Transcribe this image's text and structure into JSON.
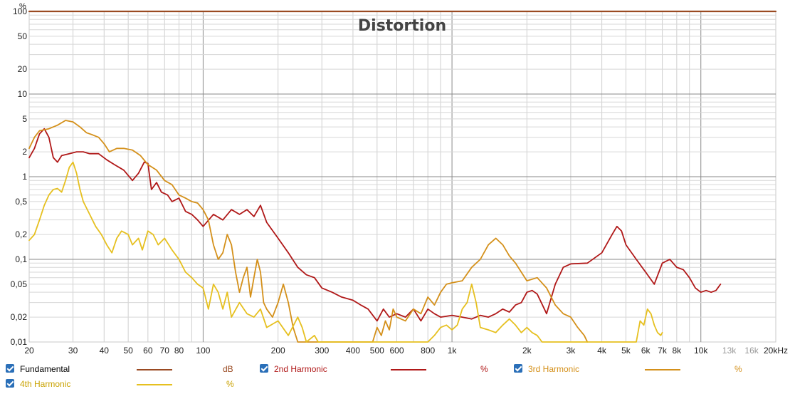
{
  "chart_data": {
    "type": "line",
    "title": "Distortion",
    "y_unit_label": "%",
    "x_scale": "log",
    "y_scale": "log",
    "xlim": [
      20,
      20000
    ],
    "ylim": [
      0.01,
      100
    ],
    "grid": true,
    "x_tick_labels": [
      {
        "v": 20,
        "t": "20"
      },
      {
        "v": 30,
        "t": "30"
      },
      {
        "v": 40,
        "t": "40"
      },
      {
        "v": 50,
        "t": "50"
      },
      {
        "v": 60,
        "t": "60"
      },
      {
        "v": 70,
        "t": "70"
      },
      {
        "v": 80,
        "t": "80"
      },
      {
        "v": 100,
        "t": "100"
      },
      {
        "v": 200,
        "t": "200"
      },
      {
        "v": 300,
        "t": "300"
      },
      {
        "v": 400,
        "t": "400"
      },
      {
        "v": 500,
        "t": "500"
      },
      {
        "v": 600,
        "t": "600"
      },
      {
        "v": 800,
        "t": "800"
      },
      {
        "v": 1000,
        "t": "1k"
      },
      {
        "v": 2000,
        "t": "2k"
      },
      {
        "v": 3000,
        "t": "3k"
      },
      {
        "v": 4000,
        "t": "4k"
      },
      {
        "v": 5000,
        "t": "5k"
      },
      {
        "v": 6000,
        "t": "6k"
      },
      {
        "v": 7000,
        "t": "7k"
      },
      {
        "v": 8000,
        "t": "8k"
      },
      {
        "v": 10000,
        "t": "10k"
      },
      {
        "v": 13000,
        "t": "13k",
        "faint": true
      },
      {
        "v": 16000,
        "t": "16k",
        "faint": true
      },
      {
        "v": 20000,
        "t": "20kHz"
      }
    ],
    "y_tick_labels": [
      {
        "v": 100,
        "t": "100"
      },
      {
        "v": 50,
        "t": "50"
      },
      {
        "v": 20,
        "t": "20"
      },
      {
        "v": 10,
        "t": "10"
      },
      {
        "v": 5,
        "t": "5"
      },
      {
        "v": 2,
        "t": "2"
      },
      {
        "v": 1,
        "t": "1"
      },
      {
        "v": 0.5,
        "t": "0,5"
      },
      {
        "v": 0.2,
        "t": "0,2"
      },
      {
        "v": 0.1,
        "t": "0,1"
      },
      {
        "v": 0.05,
        "t": "0,05"
      },
      {
        "v": 0.02,
        "t": "0,02"
      },
      {
        "v": 0.01,
        "t": "0,01"
      }
    ],
    "series": [
      {
        "name": "Fundamental",
        "unit": "dB",
        "color": "#9a4a22",
        "points": [
          [
            20,
            100
          ],
          [
            20000,
            100
          ]
        ]
      },
      {
        "name": "2nd Harmonic",
        "unit": "%",
        "color": "#b01818",
        "points": [
          [
            20,
            1.7
          ],
          [
            21,
            2.2
          ],
          [
            22,
            3.3
          ],
          [
            23,
            3.8
          ],
          [
            24,
            3.0
          ],
          [
            25,
            1.7
          ],
          [
            26,
            1.5
          ],
          [
            27,
            1.8
          ],
          [
            29,
            1.9
          ],
          [
            31,
            2.0
          ],
          [
            33,
            2.0
          ],
          [
            35,
            1.9
          ],
          [
            38,
            1.9
          ],
          [
            41,
            1.6
          ],
          [
            44,
            1.4
          ],
          [
            48,
            1.2
          ],
          [
            52,
            0.9
          ],
          [
            55,
            1.1
          ],
          [
            58,
            1.5
          ],
          [
            60,
            1.45
          ],
          [
            62,
            0.7
          ],
          [
            65,
            0.85
          ],
          [
            68,
            0.65
          ],
          [
            72,
            0.6
          ],
          [
            75,
            0.5
          ],
          [
            80,
            0.55
          ],
          [
            85,
            0.38
          ],
          [
            90,
            0.35
          ],
          [
            95,
            0.3
          ],
          [
            100,
            0.25
          ],
          [
            110,
            0.35
          ],
          [
            120,
            0.3
          ],
          [
            130,
            0.4
          ],
          [
            140,
            0.35
          ],
          [
            150,
            0.4
          ],
          [
            160,
            0.33
          ],
          [
            170,
            0.45
          ],
          [
            180,
            0.28
          ],
          [
            200,
            0.18
          ],
          [
            220,
            0.12
          ],
          [
            240,
            0.08
          ],
          [
            260,
            0.065
          ],
          [
            280,
            0.06
          ],
          [
            300,
            0.045
          ],
          [
            330,
            0.04
          ],
          [
            360,
            0.035
          ],
          [
            400,
            0.032
          ],
          [
            430,
            0.028
          ],
          [
            460,
            0.025
          ],
          [
            500,
            0.018
          ],
          [
            530,
            0.025
          ],
          [
            560,
            0.02
          ],
          [
            600,
            0.022
          ],
          [
            650,
            0.02
          ],
          [
            700,
            0.025
          ],
          [
            750,
            0.018
          ],
          [
            800,
            0.025
          ],
          [
            850,
            0.022
          ],
          [
            900,
            0.02
          ],
          [
            1000,
            0.021
          ],
          [
            1100,
            0.02
          ],
          [
            1200,
            0.019
          ],
          [
            1300,
            0.021
          ],
          [
            1400,
            0.02
          ],
          [
            1500,
            0.022
          ],
          [
            1600,
            0.025
          ],
          [
            1700,
            0.023
          ],
          [
            1800,
            0.028
          ],
          [
            1900,
            0.03
          ],
          [
            2000,
            0.04
          ],
          [
            2100,
            0.042
          ],
          [
            2200,
            0.038
          ],
          [
            2400,
            0.022
          ],
          [
            2600,
            0.05
          ],
          [
            2800,
            0.08
          ],
          [
            3000,
            0.088
          ],
          [
            3500,
            0.09
          ],
          [
            4000,
            0.12
          ],
          [
            4400,
            0.2
          ],
          [
            4600,
            0.25
          ],
          [
            4800,
            0.22
          ],
          [
            5000,
            0.15
          ],
          [
            5500,
            0.1
          ],
          [
            6000,
            0.07
          ],
          [
            6500,
            0.05
          ],
          [
            7000,
            0.09
          ],
          [
            7500,
            0.1
          ],
          [
            8000,
            0.08
          ],
          [
            8500,
            0.075
          ],
          [
            9000,
            0.06
          ],
          [
            9500,
            0.045
          ],
          [
            10000,
            0.04
          ],
          [
            10500,
            0.042
          ],
          [
            11000,
            0.04
          ],
          [
            11500,
            0.042
          ],
          [
            12000,
            0.05
          ]
        ]
      },
      {
        "name": "3rd Harmonic",
        "unit": "%",
        "color": "#d4901a",
        "points": [
          [
            20,
            2.2
          ],
          [
            21,
            3.0
          ],
          [
            22,
            3.6
          ],
          [
            24,
            3.8
          ],
          [
            26,
            4.2
          ],
          [
            28,
            4.8
          ],
          [
            30,
            4.6
          ],
          [
            32,
            4.0
          ],
          [
            34,
            3.4
          ],
          [
            36,
            3.2
          ],
          [
            38,
            3.0
          ],
          [
            40,
            2.5
          ],
          [
            42,
            2.0
          ],
          [
            45,
            2.2
          ],
          [
            48,
            2.2
          ],
          [
            52,
            2.1
          ],
          [
            56,
            1.8
          ],
          [
            60,
            1.4
          ],
          [
            65,
            1.2
          ],
          [
            70,
            0.9
          ],
          [
            75,
            0.8
          ],
          [
            80,
            0.6
          ],
          [
            85,
            0.55
          ],
          [
            90,
            0.5
          ],
          [
            95,
            0.48
          ],
          [
            100,
            0.4
          ],
          [
            105,
            0.3
          ],
          [
            110,
            0.15
          ],
          [
            115,
            0.1
          ],
          [
            120,
            0.12
          ],
          [
            125,
            0.2
          ],
          [
            130,
            0.15
          ],
          [
            135,
            0.07
          ],
          [
            140,
            0.04
          ],
          [
            145,
            0.06
          ],
          [
            150,
            0.08
          ],
          [
            155,
            0.035
          ],
          [
            160,
            0.06
          ],
          [
            165,
            0.1
          ],
          [
            170,
            0.07
          ],
          [
            175,
            0.03
          ],
          [
            180,
            0.025
          ],
          [
            190,
            0.02
          ],
          [
            200,
            0.03
          ],
          [
            210,
            0.05
          ],
          [
            220,
            0.03
          ],
          [
            230,
            0.015
          ],
          [
            240,
            0.01
          ],
          [
            480,
            0.01
          ],
          [
            500,
            0.015
          ],
          [
            520,
            0.012
          ],
          [
            540,
            0.018
          ],
          [
            560,
            0.014
          ],
          [
            580,
            0.025
          ],
          [
            600,
            0.02
          ],
          [
            650,
            0.018
          ],
          [
            700,
            0.025
          ],
          [
            750,
            0.022
          ],
          [
            800,
            0.035
          ],
          [
            850,
            0.028
          ],
          [
            900,
            0.04
          ],
          [
            950,
            0.05
          ],
          [
            1000,
            0.052
          ],
          [
            1100,
            0.055
          ],
          [
            1200,
            0.08
          ],
          [
            1300,
            0.1
          ],
          [
            1400,
            0.15
          ],
          [
            1500,
            0.18
          ],
          [
            1600,
            0.15
          ],
          [
            1700,
            0.11
          ],
          [
            1800,
            0.09
          ],
          [
            1900,
            0.07
          ],
          [
            2000,
            0.055
          ],
          [
            2200,
            0.06
          ],
          [
            2400,
            0.045
          ],
          [
            2600,
            0.028
          ],
          [
            2800,
            0.022
          ],
          [
            3000,
            0.02
          ],
          [
            3200,
            0.015
          ],
          [
            3400,
            0.012
          ],
          [
            3500,
            0.01
          ]
        ]
      },
      {
        "name": "4th Harmonic",
        "unit": "%",
        "color": "#e6c020",
        "points": [
          [
            20,
            0.17
          ],
          [
            21,
            0.2
          ],
          [
            22,
            0.3
          ],
          [
            23,
            0.45
          ],
          [
            24,
            0.6
          ],
          [
            25,
            0.7
          ],
          [
            26,
            0.72
          ],
          [
            27,
            0.65
          ],
          [
            28,
            0.9
          ],
          [
            29,
            1.3
          ],
          [
            30,
            1.5
          ],
          [
            31,
            1.1
          ],
          [
            32,
            0.7
          ],
          [
            33,
            0.5
          ],
          [
            35,
            0.35
          ],
          [
            37,
            0.25
          ],
          [
            39,
            0.2
          ],
          [
            41,
            0.15
          ],
          [
            43,
            0.12
          ],
          [
            45,
            0.18
          ],
          [
            47,
            0.22
          ],
          [
            50,
            0.2
          ],
          [
            52,
            0.15
          ],
          [
            55,
            0.18
          ],
          [
            57,
            0.13
          ],
          [
            60,
            0.22
          ],
          [
            63,
            0.2
          ],
          [
            66,
            0.15
          ],
          [
            70,
            0.18
          ],
          [
            75,
            0.13
          ],
          [
            80,
            0.1
          ],
          [
            85,
            0.07
          ],
          [
            90,
            0.06
          ],
          [
            95,
            0.05
          ],
          [
            100,
            0.045
          ],
          [
            105,
            0.025
          ],
          [
            110,
            0.05
          ],
          [
            115,
            0.04
          ],
          [
            120,
            0.025
          ],
          [
            125,
            0.04
          ],
          [
            130,
            0.02
          ],
          [
            140,
            0.03
          ],
          [
            150,
            0.022
          ],
          [
            160,
            0.02
          ],
          [
            170,
            0.025
          ],
          [
            180,
            0.015
          ],
          [
            200,
            0.018
          ],
          [
            220,
            0.012
          ],
          [
            240,
            0.02
          ],
          [
            250,
            0.015
          ],
          [
            260,
            0.01
          ],
          [
            280,
            0.012
          ],
          [
            290,
            0.01
          ],
          [
            800,
            0.01
          ],
          [
            850,
            0.012
          ],
          [
            900,
            0.015
          ],
          [
            950,
            0.016
          ],
          [
            1000,
            0.014
          ],
          [
            1050,
            0.016
          ],
          [
            1100,
            0.025
          ],
          [
            1150,
            0.03
          ],
          [
            1200,
            0.05
          ],
          [
            1250,
            0.03
          ],
          [
            1300,
            0.015
          ],
          [
            1400,
            0.014
          ],
          [
            1500,
            0.013
          ],
          [
            1600,
            0.016
          ],
          [
            1700,
            0.019
          ],
          [
            1800,
            0.016
          ],
          [
            1900,
            0.013
          ],
          [
            2000,
            0.015
          ],
          [
            2100,
            0.013
          ],
          [
            2200,
            0.012
          ],
          [
            2300,
            0.01
          ],
          [
            5500,
            0.01
          ],
          [
            5700,
            0.018
          ],
          [
            5900,
            0.016
          ],
          [
            6100,
            0.025
          ],
          [
            6300,
            0.022
          ],
          [
            6500,
            0.016
          ],
          [
            6700,
            0.013
          ],
          [
            6900,
            0.012
          ],
          [
            7000,
            0.013
          ]
        ]
      }
    ]
  },
  "legend": [
    {
      "name": "Fundamental",
      "unit": "dB",
      "color": "#9a4a22",
      "checked": true
    },
    {
      "name": "2nd Harmonic",
      "unit": "%",
      "color": "#b01818",
      "checked": true
    },
    {
      "name": "3rd Harmonic",
      "unit": "%",
      "color": "#d4901a",
      "checked": true
    },
    {
      "name": "4th Harmonic",
      "unit": "%",
      "color": "#e6c020",
      "checked": true
    }
  ]
}
